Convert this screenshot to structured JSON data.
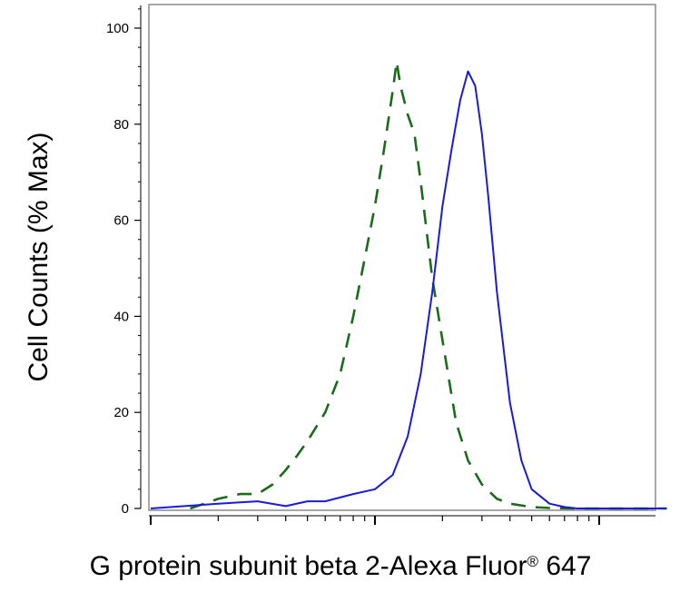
{
  "chart_data": {
    "type": "line",
    "title": "",
    "xlabel": "G protein subunit beta 2-Alexa Fluor",
    "xlabel_registered_mark": "®",
    "xlabel_suffix": " 647",
    "ylabel": "Cell Counts (% Max)",
    "x_scale": "log",
    "x_tick_labels_shown": false,
    "yticks": [
      "0",
      "20",
      "40",
      "60",
      "80",
      "100"
    ],
    "ylim": [
      0,
      105
    ],
    "grid": false,
    "legend": "none",
    "series": [
      {
        "style": "dashed",
        "color": "#1a6b1a",
        "x": [
          15,
          20,
          25,
          30,
          35,
          40,
          45,
          50,
          60,
          70,
          80,
          90,
          100,
          110,
          120,
          125,
          130,
          140,
          150,
          160,
          180,
          200,
          230,
          260,
          300,
          350,
          400,
          500,
          600,
          800,
          1000,
          2000
        ],
        "y": [
          0,
          2,
          3,
          3,
          5,
          8,
          11,
          14,
          20,
          28,
          40,
          52,
          63,
          75,
          87,
          93,
          88,
          82,
          78,
          68,
          48,
          35,
          18,
          10,
          5,
          2,
          1,
          0.3,
          0.1,
          0,
          0,
          0
        ]
      },
      {
        "style": "solid",
        "color": "#1a1adc",
        "x": [
          10,
          20,
          30,
          40,
          50,
          60,
          80,
          100,
          120,
          140,
          160,
          180,
          200,
          220,
          240,
          260,
          280,
          300,
          320,
          350,
          400,
          450,
          500,
          600,
          700,
          800,
          1000,
          2000
        ],
        "y": [
          0,
          1,
          1.5,
          0.5,
          1.5,
          1.5,
          3,
          4,
          7,
          15,
          28,
          45,
          63,
          75,
          85,
          91,
          88,
          78,
          65,
          45,
          22,
          10,
          4,
          1,
          0.3,
          0,
          0,
          0
        ]
      }
    ]
  }
}
